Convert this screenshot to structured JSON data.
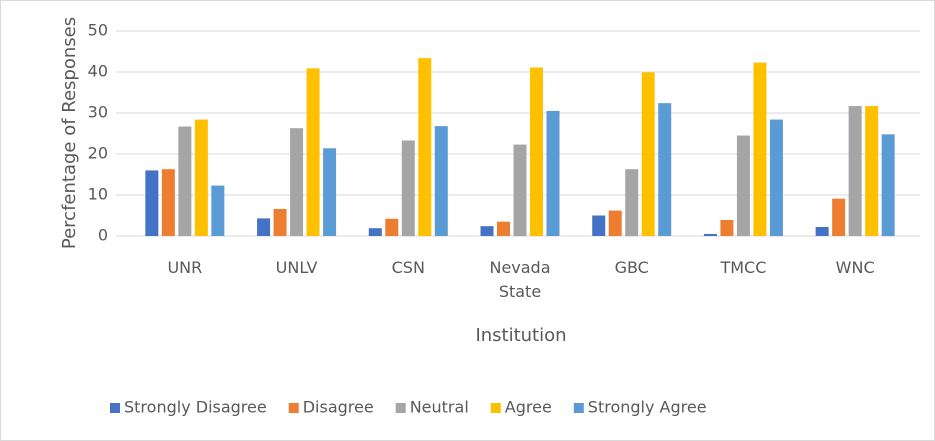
{
  "chart_data": {
    "type": "bar",
    "x_label": "Institution",
    "y_label": "Percfentage of Responses",
    "categories": [
      "UNR",
      "UNLV",
      "CSN",
      "Nevada State",
      "GBC",
      "TMCC",
      "WNC"
    ],
    "series": [
      {
        "name": "Strongly Disagree",
        "color": "#4472c4",
        "values": [
          16,
          4.3,
          1.9,
          2.4,
          5,
          0.5,
          2.2
        ]
      },
      {
        "name": "Disagree",
        "color": "#ed7d31",
        "values": [
          16.3,
          6.6,
          4.2,
          3.5,
          6.2,
          3.9,
          9.1
        ]
      },
      {
        "name": "Neutral",
        "color": "#a5a5a5",
        "values": [
          26.7,
          26.3,
          23.3,
          22.3,
          16.3,
          24.5,
          31.7
        ]
      },
      {
        "name": "Agree",
        "color": "#ffc000",
        "values": [
          28.4,
          40.9,
          43.4,
          41.1,
          39.9,
          42.3,
          31.7
        ]
      },
      {
        "name": "Strongly Agree",
        "color": "#5b9bd5",
        "values": [
          12.3,
          21.4,
          26.8,
          30.5,
          32.4,
          28.4,
          24.8
        ]
      }
    ],
    "ylim": [
      0,
      50
    ],
    "yticks": [
      0,
      10,
      20,
      30,
      40,
      50
    ],
    "grid": true,
    "legend": "bottom"
  }
}
